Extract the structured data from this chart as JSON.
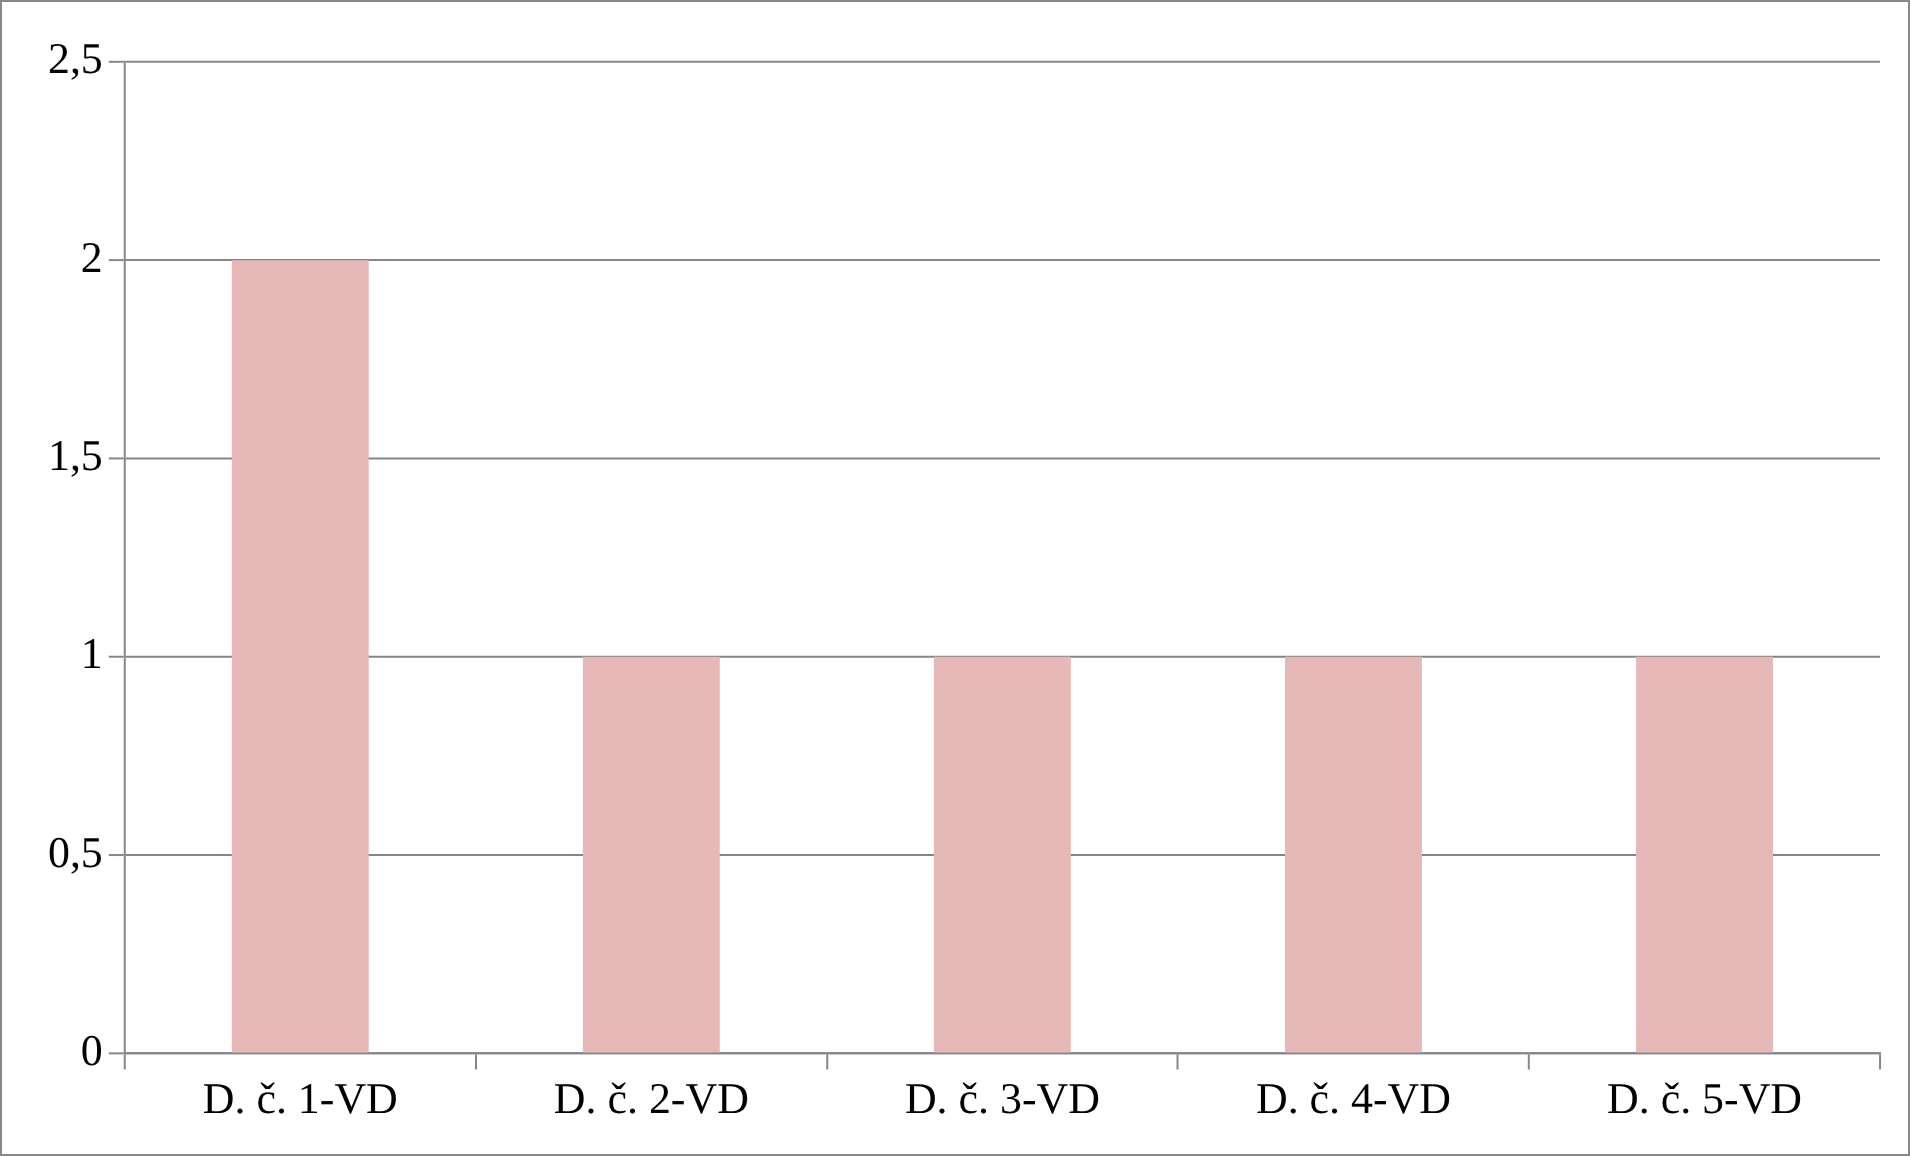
{
  "chart_data": {
    "type": "bar",
    "categories": [
      "D. č. 1-VD",
      "D. č. 2-VD",
      "D. č. 3-VD",
      "D. č. 4-VD",
      "D. č. 5-VD"
    ],
    "values": [
      2,
      1,
      1,
      1,
      1
    ],
    "color": "#e6b9b8",
    "ylim": [
      0,
      2.5
    ],
    "yticks": [
      {
        "value": 0,
        "label": "0"
      },
      {
        "value": 0.5,
        "label": "0,5"
      },
      {
        "value": 1,
        "label": "1"
      },
      {
        "value": 1.5,
        "label": "1,5"
      },
      {
        "value": 2,
        "label": "2"
      },
      {
        "value": 2.5,
        "label": "2,5"
      }
    ],
    "grid": "y",
    "legend": false
  }
}
